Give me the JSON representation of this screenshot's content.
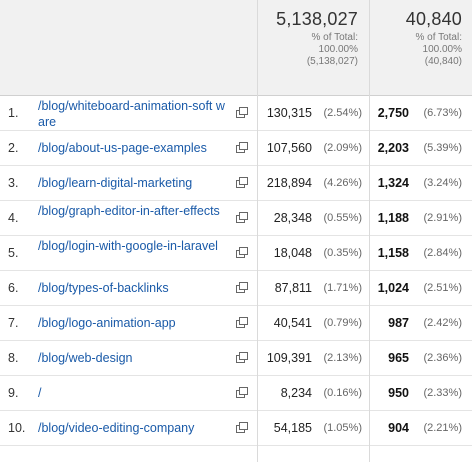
{
  "header": {
    "col1": {
      "total": "5,138,027",
      "pct_label": "% of Total:",
      "pct": "100.00%",
      "abs": "(5,138,027)"
    },
    "col2": {
      "total": "40,840",
      "pct_label": "% of Total:",
      "pct": "100.00%",
      "abs": "(40,840)"
    }
  },
  "rows": [
    {
      "n": "1.",
      "page": "/blog/whiteboard-animation-soft ware",
      "v1": "130,315",
      "p1": "(2.54%)",
      "v2": "2,750",
      "p2": "(6.73%)"
    },
    {
      "n": "2.",
      "page": "/blog/about-us-page-examples",
      "v1": "107,560",
      "p1": "(2.09%)",
      "v2": "2,203",
      "p2": "(5.39%)"
    },
    {
      "n": "3.",
      "page": "/blog/learn-digital-marketing",
      "v1": "218,894",
      "p1": "(4.26%)",
      "v2": "1,324",
      "p2": "(3.24%)"
    },
    {
      "n": "4.",
      "page": "/blog/graph-editor-in-after-effects",
      "v1": "28,348",
      "p1": "(0.55%)",
      "v2": "1,188",
      "p2": "(2.91%)"
    },
    {
      "n": "5.",
      "page": "/blog/login-with-google-in-laravel",
      "v1": "18,048",
      "p1": "(0.35%)",
      "v2": "1,158",
      "p2": "(2.84%)"
    },
    {
      "n": "6.",
      "page": "/blog/types-of-backlinks",
      "v1": "87,811",
      "p1": "(1.71%)",
      "v2": "1,024",
      "p2": "(2.51%)"
    },
    {
      "n": "7.",
      "page": "/blog/logo-animation-app",
      "v1": "40,541",
      "p1": "(0.79%)",
      "v2": "987",
      "p2": "(2.42%)"
    },
    {
      "n": "8.",
      "page": "/blog/web-design",
      "v1": "109,391",
      "p1": "(2.13%)",
      "v2": "965",
      "p2": "(2.36%)"
    },
    {
      "n": "9.",
      "page": "/",
      "v1": "8,234",
      "p1": "(0.16%)",
      "v2": "950",
      "p2": "(2.33%)"
    },
    {
      "n": "10.",
      "page": "/blog/video-editing-company",
      "v1": "54,185",
      "p1": "(1.05%)",
      "v2": "904",
      "p2": "(2.21%)"
    }
  ],
  "colors": {
    "link": "#1a5aa8",
    "header_bg": "#f1f1f1"
  },
  "icons": {
    "row_action": "open-in-new-window-icon"
  }
}
